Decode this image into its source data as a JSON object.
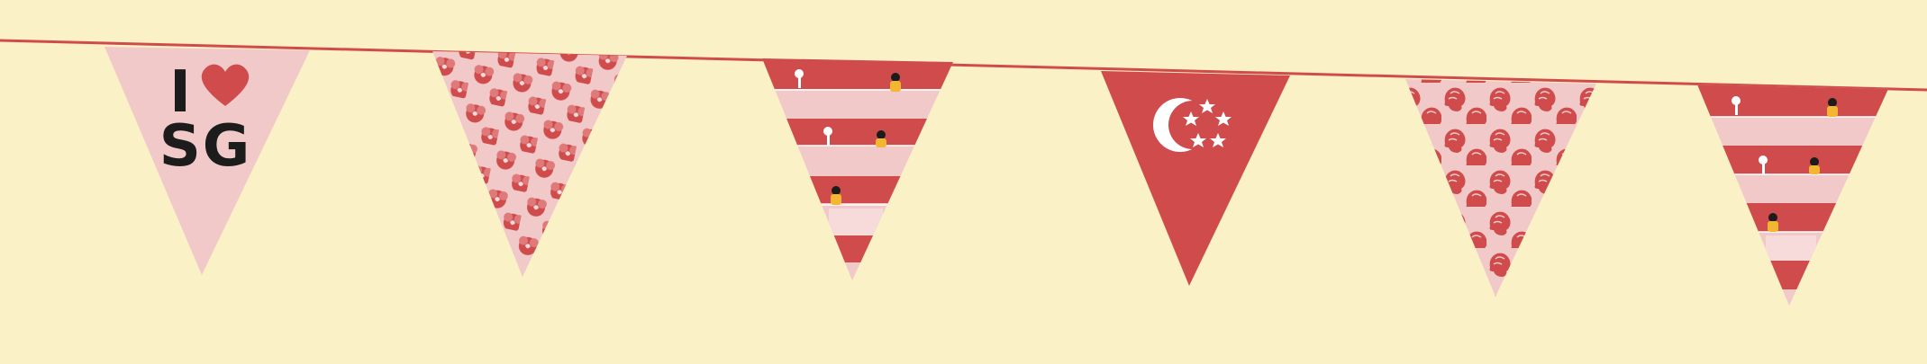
{
  "bunting": {
    "flag_1": {
      "line_1": "I",
      "line_2": "SG",
      "heart_icon": "heart-icon",
      "fill": "#f2c9c9",
      "text_color": "#1c1c1c",
      "heart_color": "#d04c4c"
    },
    "flag_2": {
      "pattern": "orchid-flower-pattern",
      "fill": "#f2c9c9",
      "accent": "#d04c4c"
    },
    "flag_3": {
      "pattern": "hdb-balcony-stripes",
      "fill": "#f2c9c9",
      "accent": "#d04c4c"
    },
    "flag_4": {
      "pattern": "singapore-flag-crescent-and-stars",
      "fill": "#d04c4c",
      "accent": "#ffffff"
    },
    "flag_5": {
      "pattern": "merlion-head-pattern",
      "fill": "#f2c9c9",
      "accent": "#d04c4c"
    },
    "flag_6": {
      "pattern": "hdb-balcony-stripes",
      "fill": "#f2c9c9",
      "accent": "#d04c4c"
    }
  },
  "colors": {
    "background": "#fbf1c6",
    "string": "#d04c4c",
    "pink": "#f2c9c9",
    "red": "#d04c4c",
    "figure_yellow": "#f2b632"
  }
}
